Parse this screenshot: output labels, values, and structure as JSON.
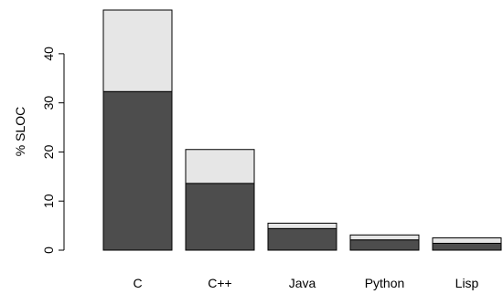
{
  "chart_data": {
    "type": "bar",
    "stacked": true,
    "title": "",
    "xlabel": "",
    "ylabel": "% SLOC",
    "ylim": [
      0,
      48.9
    ],
    "yticks": [
      0,
      10,
      20,
      30,
      40
    ],
    "grid": false,
    "legend": "none",
    "categories": [
      "C",
      "C++",
      "Java",
      "Python",
      "Lisp"
    ],
    "series": [
      {
        "values": [
          32.3,
          13.6,
          4.4,
          2.1,
          1.4
        ],
        "color": "#4d4d4d"
      },
      {
        "values": [
          16.6,
          6.9,
          1.1,
          1.0,
          1.1
        ],
        "color": "#e6e6e6"
      }
    ]
  }
}
